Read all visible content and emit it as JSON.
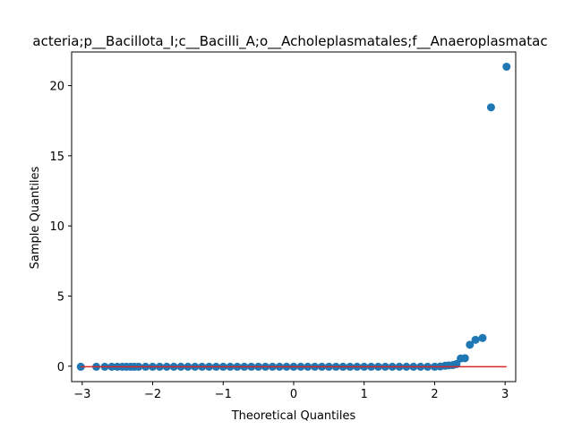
{
  "chart_data": {
    "type": "scatter",
    "title": "acteria;p__Bacillota_I;c__Bacilli_A;o__Acholeplasmatales;f__Anaeroplasmatac",
    "xlabel": "Theoretical Quantiles",
    "ylabel": "Sample Quantiles",
    "xlim": [
      -3.15,
      3.15
    ],
    "ylim": [
      -1.1,
      22.4
    ],
    "x_ticks": [
      -3,
      -2,
      -1,
      0,
      1,
      2,
      3
    ],
    "y_ticks": [
      0,
      5,
      10,
      15,
      20
    ],
    "grid": false,
    "legend": "none",
    "series": [
      {
        "color": "#1f77b4",
        "points": [
          [
            -3.02,
            -0.04
          ],
          [
            -2.8,
            -0.04
          ],
          [
            -2.68,
            -0.04
          ],
          [
            -2.58,
            -0.04
          ],
          [
            -2.5,
            -0.04
          ],
          [
            -2.43,
            -0.04
          ],
          [
            -2.37,
            -0.04
          ],
          [
            -2.31,
            -0.04
          ],
          [
            -2.26,
            -0.04
          ],
          [
            -2.2,
            -0.04
          ],
          [
            -2.1,
            -0.04
          ],
          [
            -2.0,
            -0.04
          ],
          [
            -1.9,
            -0.04
          ],
          [
            -1.8,
            -0.04
          ],
          [
            -1.7,
            -0.04
          ],
          [
            -1.6,
            -0.04
          ],
          [
            -1.5,
            -0.04
          ],
          [
            -1.4,
            -0.04
          ],
          [
            -1.3,
            -0.04
          ],
          [
            -1.2,
            -0.04
          ],
          [
            -1.1,
            -0.04
          ],
          [
            -1.0,
            -0.04
          ],
          [
            -0.9,
            -0.04
          ],
          [
            -0.8,
            -0.04
          ],
          [
            -0.7,
            -0.04
          ],
          [
            -0.6,
            -0.04
          ],
          [
            -0.5,
            -0.04
          ],
          [
            -0.4,
            -0.04
          ],
          [
            -0.3,
            -0.04
          ],
          [
            -0.2,
            -0.04
          ],
          [
            -0.1,
            -0.04
          ],
          [
            0.0,
            -0.04
          ],
          [
            0.1,
            -0.04
          ],
          [
            0.2,
            -0.04
          ],
          [
            0.3,
            -0.04
          ],
          [
            0.4,
            -0.04
          ],
          [
            0.5,
            -0.04
          ],
          [
            0.6,
            -0.04
          ],
          [
            0.7,
            -0.04
          ],
          [
            0.8,
            -0.04
          ],
          [
            0.9,
            -0.04
          ],
          [
            1.0,
            -0.04
          ],
          [
            1.1,
            -0.04
          ],
          [
            1.2,
            -0.04
          ],
          [
            1.3,
            -0.04
          ],
          [
            1.4,
            -0.04
          ],
          [
            1.5,
            -0.04
          ],
          [
            1.6,
            -0.04
          ],
          [
            1.7,
            -0.04
          ],
          [
            1.8,
            -0.04
          ],
          [
            1.9,
            -0.04
          ],
          [
            2.0,
            -0.04
          ],
          [
            2.08,
            -0.02
          ],
          [
            2.15,
            0.03
          ],
          [
            2.2,
            0.06
          ],
          [
            2.26,
            0.08
          ],
          [
            2.31,
            0.15
          ],
          [
            2.37,
            0.55
          ],
          [
            2.43,
            0.57
          ],
          [
            2.5,
            1.53
          ],
          [
            2.58,
            1.88
          ],
          [
            2.68,
            2.01
          ],
          [
            2.8,
            18.45
          ],
          [
            3.02,
            21.35
          ]
        ]
      }
    ],
    "reference_line": {
      "color": "#d62728",
      "x": [
        -3.02,
        3.02
      ],
      "y": [
        -0.04,
        -0.04
      ]
    }
  }
}
